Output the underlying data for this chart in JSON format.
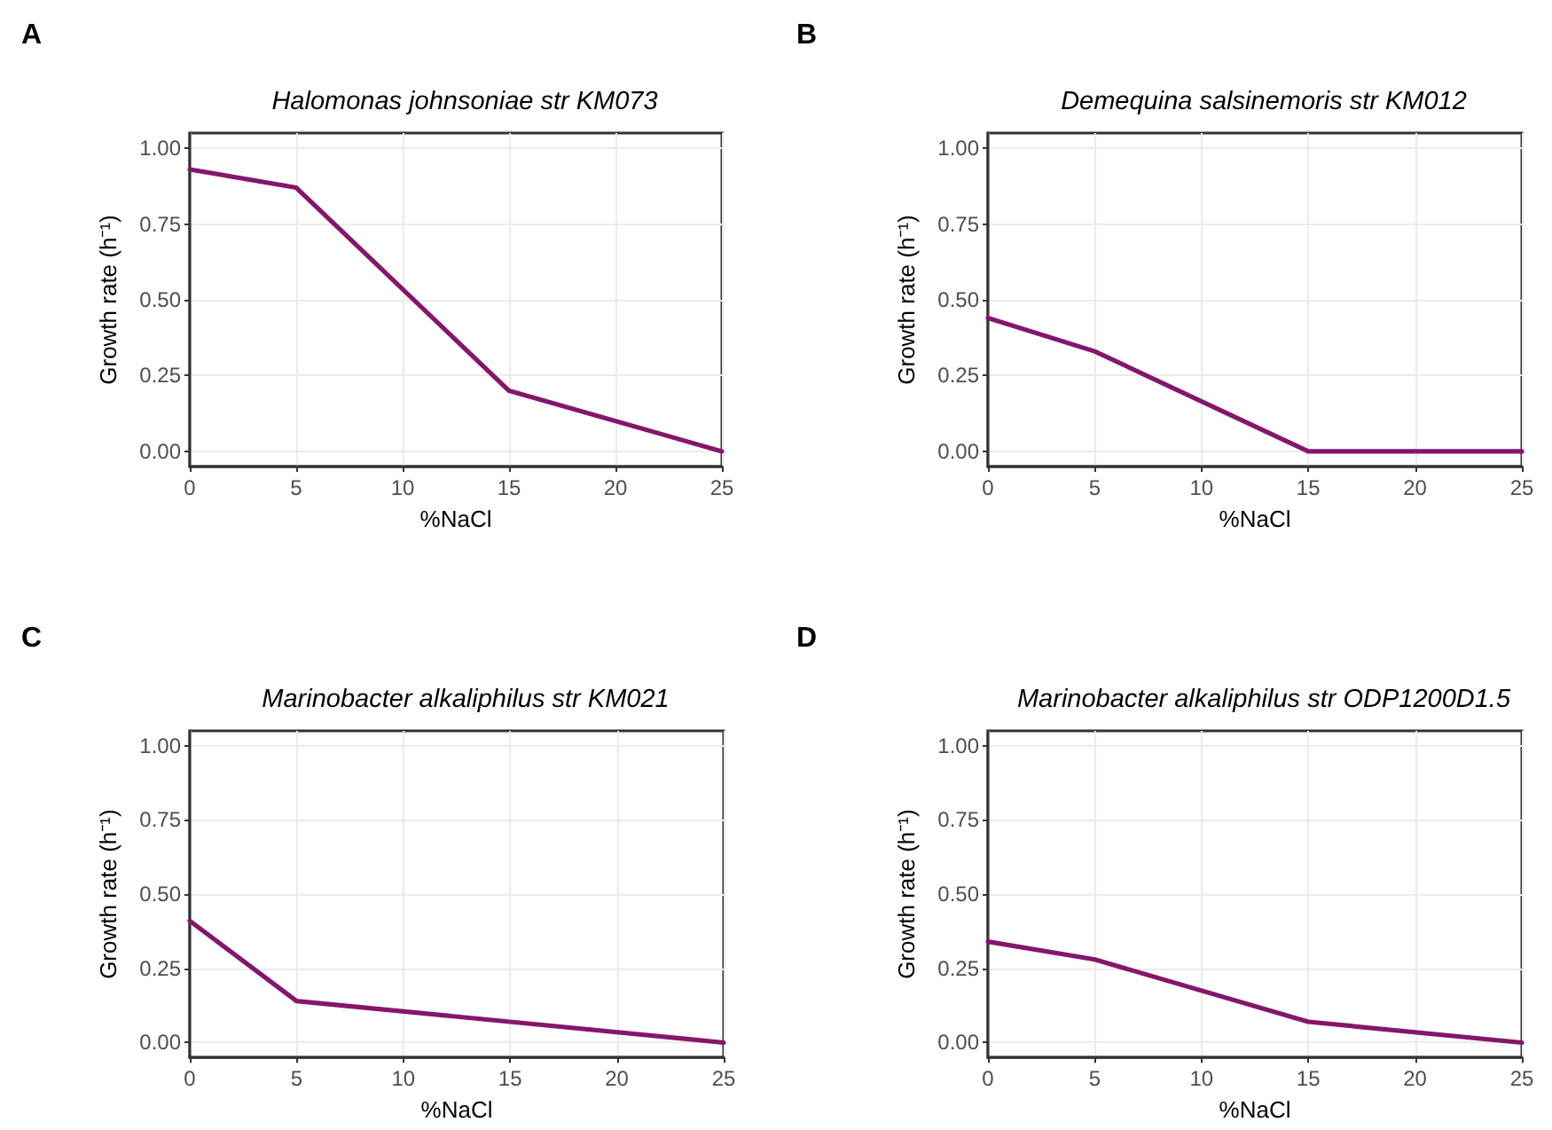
{
  "chart_data": [
    {
      "type": "line",
      "title": "Halomonas johnsoniae str KM073",
      "annotations": [
        "A"
      ],
      "xlabel": "%NaCl",
      "ylabel": "Growth rate (h⁻¹)",
      "x": [
        0,
        5,
        15,
        25
      ],
      "series": [
        {
          "color": "#85166b",
          "values": [
            0.93,
            0.87,
            0.2,
            0
          ]
        }
      ],
      "xlim": [
        0,
        25
      ],
      "xticks": [
        0,
        5,
        10,
        15,
        20,
        25
      ],
      "ylim": [
        -0.05,
        1.05
      ],
      "yticks": [
        {
          "value": 0,
          "label": "0.00"
        },
        {
          "value": 0.25,
          "label": "0.25"
        },
        {
          "value": 0.5,
          "label": "0.50"
        },
        {
          "value": 0.75,
          "label": "0.75"
        },
        {
          "value": 1,
          "label": "1.00"
        }
      ],
      "grid": true,
      "marker": "none",
      "line_style": "solid"
    },
    {
      "type": "line",
      "title": "Demequina salsinemoris str KM012",
      "annotations": [
        "B"
      ],
      "xlabel": "%NaCl",
      "ylabel": "Growth rate (h⁻¹)",
      "x": [
        0,
        5,
        15,
        25
      ],
      "series": [
        {
          "color": "#85166b",
          "values": [
            0.44,
            0.33,
            0,
            0
          ]
        }
      ],
      "xlim": [
        0,
        25
      ],
      "xticks": [
        0,
        5,
        10,
        15,
        20,
        25
      ],
      "ylim": [
        -0.05,
        1.05
      ],
      "yticks": [
        {
          "value": 0,
          "label": "0.00"
        },
        {
          "value": 0.25,
          "label": "0.25"
        },
        {
          "value": 0.5,
          "label": "0.50"
        },
        {
          "value": 0.75,
          "label": "0.75"
        },
        {
          "value": 1,
          "label": "1.00"
        }
      ],
      "grid": true,
      "marker": "none",
      "line_style": "solid"
    },
    {
      "type": "line",
      "title": "Marinobacter alkaliphilus str KM021",
      "annotations": [
        "C"
      ],
      "xlabel": "%NaCl",
      "ylabel": "Growth rate (h⁻¹)",
      "x": [
        0,
        5,
        15,
        25
      ],
      "series": [
        {
          "color": "#85166b",
          "values": [
            0.41,
            0.14,
            0.07,
            0
          ]
        }
      ],
      "xlim": [
        0,
        25
      ],
      "xticks": [
        0,
        5,
        10,
        15,
        20,
        25
      ],
      "ylim": [
        -0.05,
        1.05
      ],
      "yticks": [
        {
          "value": 0,
          "label": "0.00"
        },
        {
          "value": 0.25,
          "label": "0.25"
        },
        {
          "value": 0.5,
          "label": "0.50"
        },
        {
          "value": 0.75,
          "label": "0.75"
        },
        {
          "value": 1,
          "label": "1.00"
        }
      ],
      "grid": true,
      "marker": "none",
      "line_style": "solid"
    },
    {
      "type": "line",
      "title": "Marinobacter alkaliphilus str ODP1200D1.5",
      "annotations": [
        "D"
      ],
      "xlabel": "%NaCl",
      "ylabel": "Growth rate (h⁻¹)",
      "x": [
        0,
        5,
        15,
        25
      ],
      "series": [
        {
          "color": "#85166b",
          "values": [
            0.34,
            0.28,
            0.07,
            0
          ]
        }
      ],
      "xlim": [
        0,
        25
      ],
      "xticks": [
        0,
        5,
        10,
        15,
        20,
        25
      ],
      "ylim": [
        -0.05,
        1.05
      ],
      "yticks": [
        {
          "value": 0,
          "label": "0.00"
        },
        {
          "value": 0.25,
          "label": "0.25"
        },
        {
          "value": 0.5,
          "label": "0.50"
        },
        {
          "value": 0.75,
          "label": "0.75"
        },
        {
          "value": 1,
          "label": "1.00"
        }
      ],
      "grid": true,
      "marker": "none",
      "line_style": "solid"
    }
  ]
}
